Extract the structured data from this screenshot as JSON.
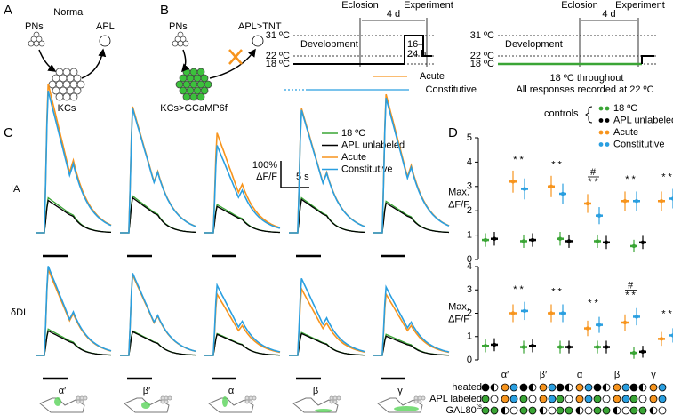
{
  "panel_labels": [
    "A",
    "B",
    "C",
    "D"
  ],
  "panel_a": {
    "title": "Normal",
    "pns": "PNs",
    "apl": "APL",
    "kcs": "KCs"
  },
  "panel_b": {
    "pns": "PNs",
    "apl": "APL>TNT",
    "kcs": "KCs>GCaMP6f",
    "timeline_1": {
      "temps": [
        "31 ºC",
        "22 ºC",
        "18 ºC"
      ],
      "eclosion": "Eclosion",
      "experiment": "Experiment",
      "duration": "4 d",
      "development": "Development",
      "heat": [
        "16–",
        "24 h"
      ]
    },
    "legend": {
      "acute": "Acute",
      "constitutive": "Constitutive"
    },
    "timeline_2": {
      "temps": [
        "31 ºC",
        "22 ºC",
        "18 ºC"
      ],
      "eclosion": "Eclosion",
      "experiment": "Experiment",
      "duration": "4 d",
      "development": "Development",
      "note": "18 ºC throughout"
    },
    "recording_note": "All responses recorded at 22 ºC"
  },
  "panel_c": {
    "legend": [
      {
        "name": "18 ºC",
        "color": "#3aa535"
      },
      {
        "name": "APL unlabeled",
        "color": "#000000"
      },
      {
        "name": "Acute",
        "color": "#f7941d"
      },
      {
        "name": "Constitutive",
        "color": "#2a9fe0"
      }
    ],
    "scale_bar": {
      "amplitude": {
        "value": 100,
        "label": "100%"
      },
      "unit": "ΔF/F",
      "time": "5 s"
    },
    "odors": [
      "IA",
      "δDL"
    ],
    "lobes": [
      "α′",
      "β′",
      "α",
      "β",
      "γ"
    ],
    "peaks": [
      [
        [
          133,
          123,
          567,
          540
        ],
        [
          140,
          133,
          480,
          473
        ],
        [
          107,
          100,
          380,
          333
        ],
        [
          133,
          127,
          473,
          467
        ],
        [
          120,
          113,
          527,
          513
        ]
      ],
      [
        [
          100,
          93,
          327,
          340
        ],
        [
          93,
          90,
          307,
          313
        ],
        [
          83,
          80,
          233,
          267
        ],
        [
          87,
          83,
          253,
          293
        ],
        [
          80,
          73,
          233,
          260
        ]
      ]
    ]
  },
  "panel_d": {
    "controls": "controls",
    "legend": [
      {
        "name": "18 ºC",
        "color": "#3aa535"
      },
      {
        "name": "APL unlabeled",
        "color": "#000000"
      },
      {
        "name": "Acute",
        "color": "#f7941d"
      },
      {
        "name": "Constitutive",
        "color": "#2a9fe0"
      }
    ],
    "plots": [
      {
        "ylabel": [
          "Max.",
          "ΔF/F"
        ],
        "ylim": [
          0,
          5
        ],
        "yticks": [
          0,
          1,
          2,
          3,
          4,
          5
        ],
        "means": [
          [
            0.8,
            0.85,
            3.2,
            2.9
          ],
          [
            0.75,
            0.8,
            3.0,
            2.7
          ],
          [
            0.85,
            0.75,
            2.3,
            1.8
          ],
          [
            0.75,
            0.7,
            2.4,
            2.4
          ],
          [
            0.55,
            0.7,
            2.4,
            2.5
          ]
        ],
        "significance": [
          "* *",
          "* *",
          "* *",
          "* *",
          "* *"
        ],
        "hash": [
          null,
          null,
          "#",
          null,
          null
        ]
      },
      {
        "ylabel": [
          "Max.",
          "ΔF/F"
        ],
        "ylim": [
          0,
          4
        ],
        "yticks": [
          0,
          1,
          2,
          3,
          4
        ],
        "means": [
          [
            0.6,
            0.65,
            2.0,
            2.1
          ],
          [
            0.55,
            0.6,
            2.0,
            2.0
          ],
          [
            0.55,
            0.55,
            1.35,
            1.5
          ],
          [
            0.55,
            0.55,
            1.6,
            1.85
          ],
          [
            0.3,
            0.35,
            0.9,
            1.05
          ]
        ],
        "significance": [
          "* *",
          "* *",
          "* *",
          "* *",
          "* *"
        ],
        "hash": [
          null,
          null,
          null,
          "#",
          null
        ]
      }
    ],
    "lobes": [
      "α′",
      "β′",
      "α",
      "β",
      "γ"
    ],
    "key_rows": [
      {
        "text": "heated"
      },
      {
        "text": "APL labeled"
      },
      {
        "text": "GAL80",
        "sup": "ts"
      }
    ]
  }
}
